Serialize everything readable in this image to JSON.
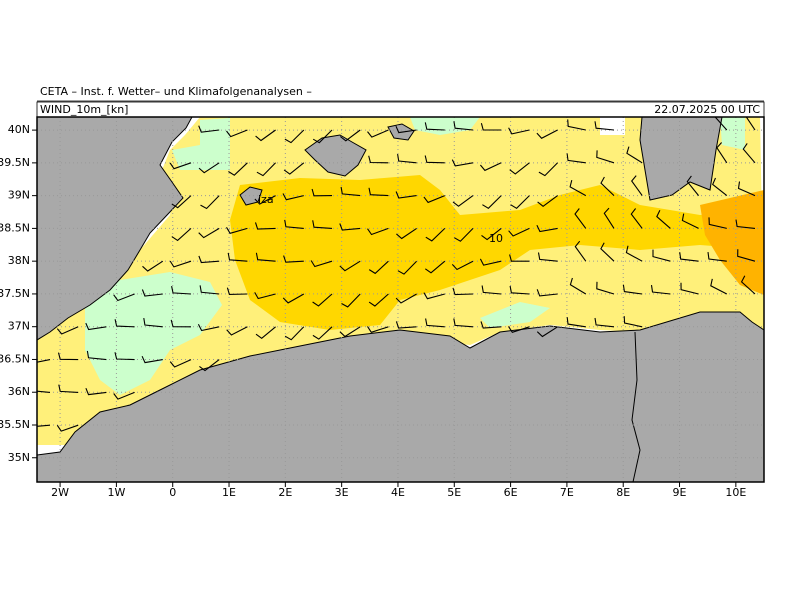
{
  "header": {
    "title": "CETA – Inst. f. Wetter– und Klimafolgenanalysen –",
    "field": "WIND_10m_[kn]",
    "valid_time": "22.07.2025 00 UTC"
  },
  "map": {
    "lon_range": [
      -2.41,
      10.5
    ],
    "lat_range": [
      34.63,
      40.2
    ],
    "lon_ticks": [
      {
        "value": -2,
        "label": "2W"
      },
      {
        "value": -1,
        "label": "1W"
      },
      0,
      {
        "value": 1,
        "label": "1E"
      },
      {
        "value": 2,
        "label": "2E"
      },
      {
        "value": 3,
        "label": "3E"
      },
      {
        "value": 4,
        "label": "4E"
      },
      {
        "value": 5,
        "label": "5E"
      },
      {
        "value": 6,
        "label": "6E"
      },
      {
        "value": 7,
        "label": "7E"
      },
      {
        "value": 8,
        "label": "8E"
      },
      {
        "value": 9,
        "label": "9E"
      },
      {
        "value": 10,
        "label": "10E"
      }
    ],
    "lat_ticks": [
      {
        "value": 35,
        "label": "35N"
      },
      {
        "value": 35.5,
        "label": "35.5N"
      },
      {
        "value": 36,
        "label": "36N"
      },
      {
        "value": 36.5,
        "label": "36.5N"
      },
      {
        "value": 37,
        "label": "37N"
      },
      {
        "value": 37.5,
        "label": "37.5N"
      },
      {
        "value": 38,
        "label": "38N"
      },
      {
        "value": 38.5,
        "label": "38.5N"
      },
      {
        "value": 39,
        "label": "39N"
      },
      {
        "value": 39.5,
        "label": "39.5N"
      },
      {
        "value": 40,
        "label": "40N"
      }
    ],
    "contour_labels": [
      10
    ],
    "place_labels": [
      "iza"
    ]
  }
}
